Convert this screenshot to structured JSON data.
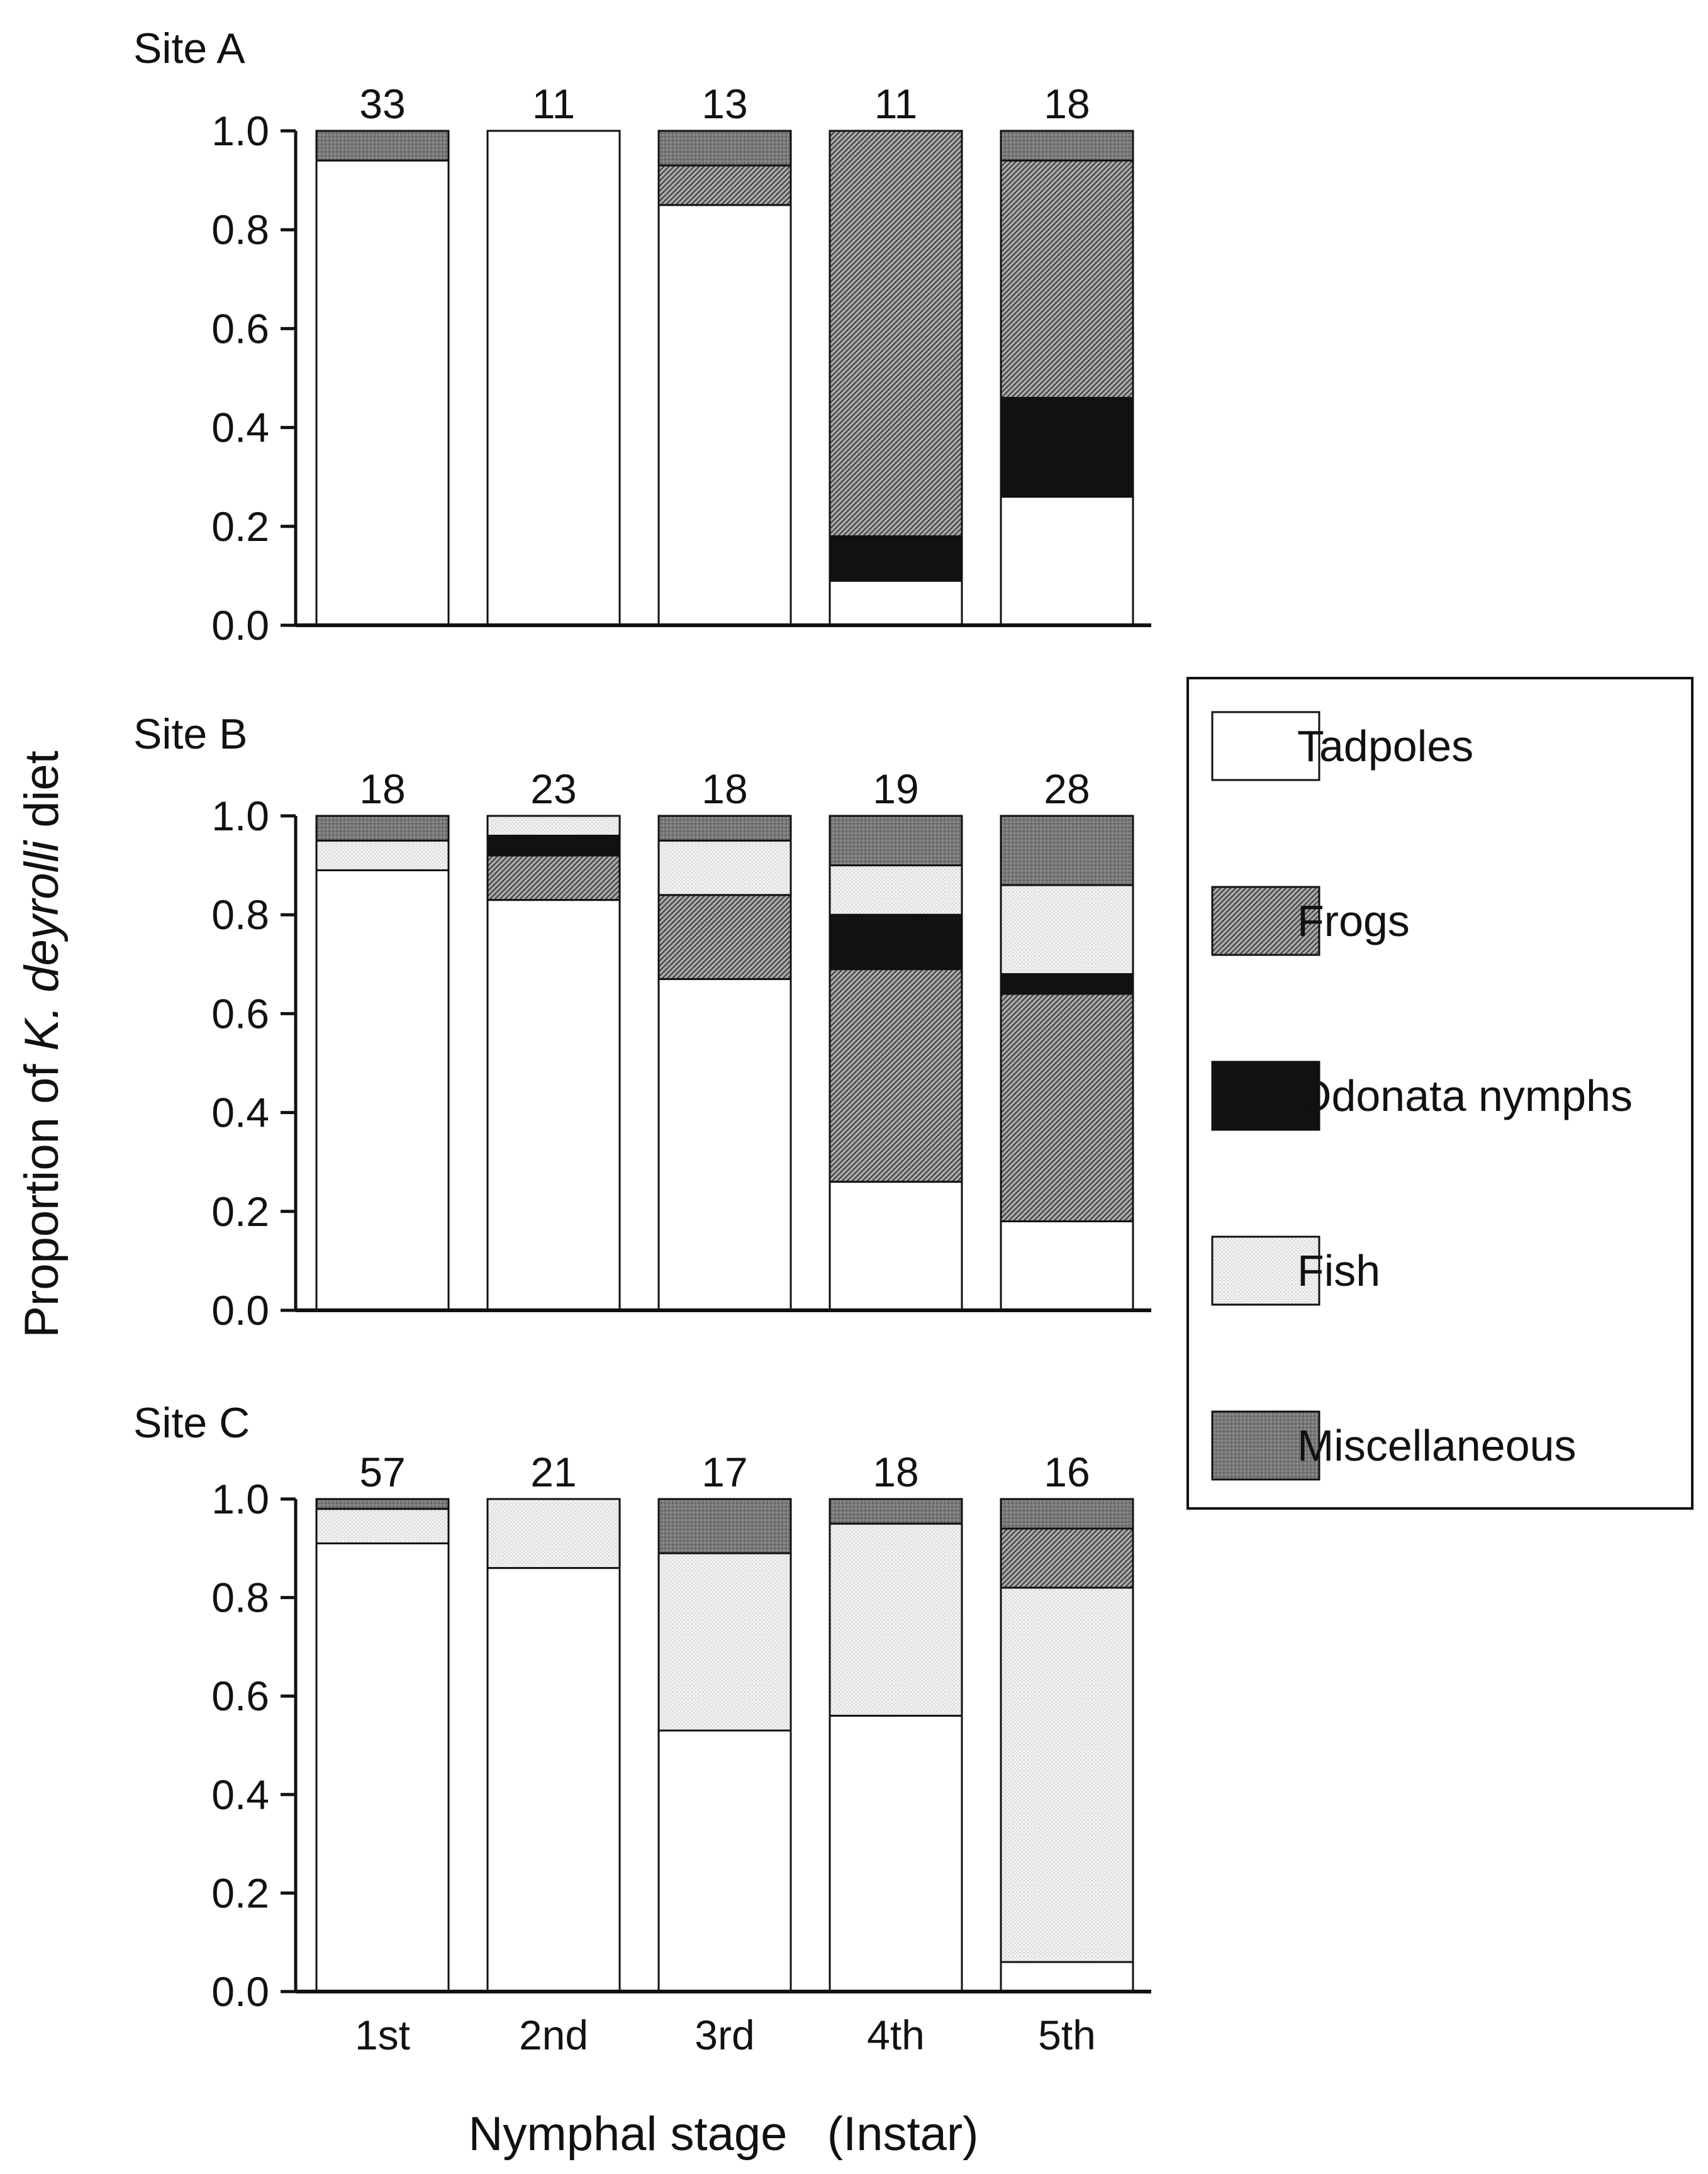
{
  "chart_data": {
    "type": "stacked-bar",
    "ylabel_parts": [
      "Proportion of ",
      "K. deyrolli",
      " diet"
    ],
    "xlabel": "Nymphal stage   (Instar)",
    "categories": [
      "1st",
      "2nd",
      "3rd",
      "4th",
      "5th"
    ],
    "ylim": [
      0,
      1
    ],
    "yticks": [
      "0.0",
      "0.2",
      "0.4",
      "0.6",
      "0.8",
      "1.0"
    ],
    "legend": [
      {
        "name": "Tadpoles",
        "pattern": "tadpoles"
      },
      {
        "name": "Frogs",
        "pattern": "frogs"
      },
      {
        "name": "Odonata nymphs",
        "pattern": "odonata"
      },
      {
        "name": "Fish",
        "pattern": "fish"
      },
      {
        "name": "Miscellaneous",
        "pattern": "misc"
      }
    ],
    "panels": [
      {
        "title": "Site A",
        "n": [
          "33",
          "11",
          "13",
          "11",
          "18"
        ],
        "series": [
          {
            "name": "Tadpoles",
            "values": [
              0.94,
              1.0,
              0.85,
              0.09,
              0.26
            ]
          },
          {
            "name": "Odonata nymphs",
            "values": [
              0,
              0,
              0,
              0.09,
              0.2
            ]
          },
          {
            "name": "Frogs",
            "values": [
              0,
              0,
              0.08,
              0.82,
              0.48
            ]
          },
          {
            "name": "Fish",
            "values": [
              0,
              0,
              0,
              0,
              0
            ]
          },
          {
            "name": "Miscellaneous",
            "values": [
              0.06,
              0,
              0.07,
              0,
              0.06
            ]
          }
        ]
      },
      {
        "title": "Site B",
        "n": [
          "18",
          "23",
          "18",
          "19",
          "28"
        ],
        "series": [
          {
            "name": "Tadpoles",
            "values": [
              0.89,
              0.83,
              0.67,
              0.26,
              0.18
            ]
          },
          {
            "name": "Frogs",
            "values": [
              0,
              0.09,
              0.17,
              0.43,
              0.46
            ]
          },
          {
            "name": "Odonata nymphs",
            "values": [
              0,
              0.04,
              0,
              0.11,
              0.04
            ]
          },
          {
            "name": "Fish",
            "values": [
              0.06,
              0.04,
              0.11,
              0.1,
              0.18
            ]
          },
          {
            "name": "Miscellaneous",
            "values": [
              0.05,
              0,
              0.05,
              0.1,
              0.14
            ]
          }
        ]
      },
      {
        "title": "Site C",
        "n": [
          "57",
          "21",
          "17",
          "18",
          "16"
        ],
        "series": [
          {
            "name": "Tadpoles",
            "values": [
              0.91,
              0.86,
              0.53,
              0.56,
              0.06
            ]
          },
          {
            "name": "Fish",
            "values": [
              0.07,
              0.14,
              0.36,
              0.39,
              0.76
            ]
          },
          {
            "name": "Frogs",
            "values": [
              0,
              0,
              0,
              0,
              0.12
            ]
          },
          {
            "name": "Miscellaneous",
            "values": [
              0.02,
              0,
              0.11,
              0.05,
              0.06
            ]
          }
        ]
      }
    ]
  }
}
